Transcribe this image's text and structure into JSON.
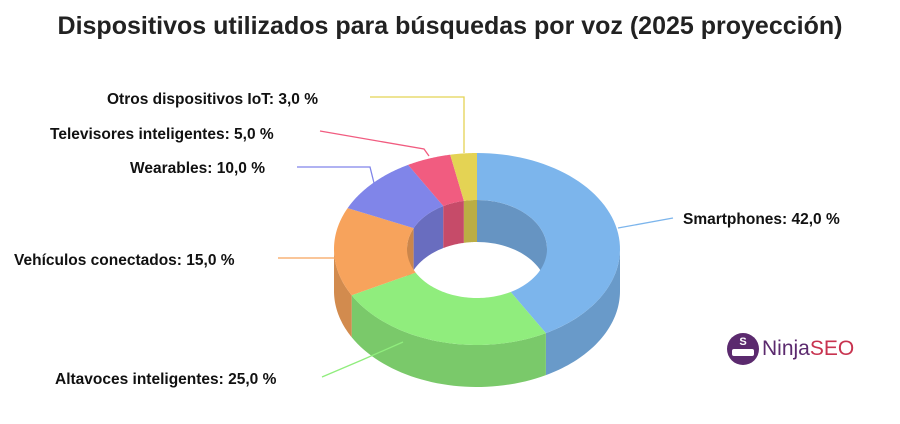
{
  "chart_data": {
    "type": "pie",
    "variant": "3d-donut",
    "title": "Dispositivos utilizados para búsquedas por voz (2025 proyección)",
    "categories": [
      "Smartphones",
      "Altavoces inteligentes",
      "Vehículos conectados",
      "Wearables",
      "Televisores inteligentes",
      "Otros dispositivos IoT"
    ],
    "values": [
      42.0,
      25.0,
      15.0,
      10.0,
      5.0,
      3.0
    ],
    "unit": "%",
    "labels": [
      "Smartphones: 42,0 %",
      "Altavoces inteligentes: 25,0 %",
      "Vehículos conectados: 15,0 %",
      "Wearables: 10,0 %",
      "Televisores inteligentes: 5,0 %",
      "Otros dispositivos IoT: 3,0 %"
    ],
    "colors": [
      "#7cb5ec",
      "#90ed7d",
      "#f7a35c",
      "#8085e9",
      "#f15c80",
      "#e4d354"
    ],
    "legend": "none"
  },
  "logo": {
    "icon_letter": "S",
    "text_1": "Ninja",
    "text_2": "SEO"
  }
}
